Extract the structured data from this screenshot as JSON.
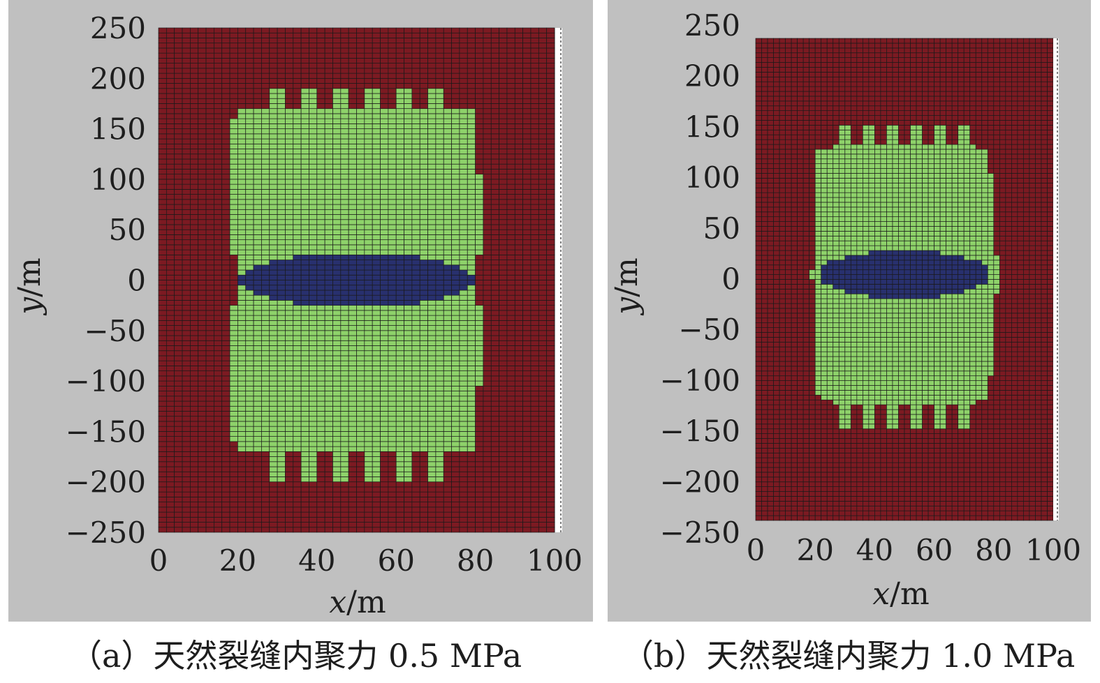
{
  "panels": [
    {
      "id": "a",
      "caption": "（a）天然裂缝内聚力 0.5 MPa",
      "xlabel_var": "x",
      "xlabel_unit": "/m",
      "ylabel_var": "y",
      "ylabel_unit": "/m",
      "xticks": [
        "0",
        "20",
        "40",
        "60",
        "80",
        "100"
      ],
      "yticks": [
        "250",
        "200",
        "150",
        "100",
        "50",
        "0",
        "−50",
        "−100",
        "−150",
        "−200",
        "−250"
      ]
    },
    {
      "id": "b",
      "caption": "（b）天然裂缝内聚力 1.0 MPa",
      "xlabel_var": "x",
      "xlabel_unit": "/m",
      "ylabel_var": "y",
      "ylabel_unit": "/m",
      "xticks": [
        "0",
        "20",
        "40",
        "60",
        "80",
        "100"
      ],
      "yticks": [
        "250",
        "200",
        "150",
        "100",
        "50",
        "0",
        "−50",
        "−100",
        "−150",
        "−200",
        "−250"
      ]
    }
  ],
  "colors": {
    "background": "#c0c0c0",
    "intact": "#7c1a22",
    "damaged": "#8ed26a",
    "core": "#28306e",
    "grid": "#1a1a1a"
  },
  "chart_data": [
    {
      "type": "heatmap",
      "xlim": [
        0,
        100
      ],
      "ylim": [
        -250,
        250
      ],
      "grid": true,
      "regions": [
        {
          "shape": "ellipse",
          "center": [
            50,
            0
          ],
          "semi_axes": [
            30,
            27
          ],
          "zone": "core"
        },
        {
          "shape": "zone-profile",
          "zone": "damaged",
          "y_profile": [
            [
              0,
              20,
              80
            ],
            [
              20,
              20,
              80
            ],
            [
              32,
              18,
              82
            ],
            [
              48,
              19,
              81
            ],
            [
              68,
              19,
              81
            ],
            [
              105,
              18,
              81
            ],
            [
              155,
              18,
              80
            ],
            [
              168,
              20,
              79
            ]
          ],
          "fingers": [
            [
              29,
              31
            ],
            [
              37,
              39
            ],
            [
              45,
              47
            ],
            [
              53,
              55
            ],
            [
              61,
              63
            ],
            [
              69,
              71
            ]
          ],
          "finger_top": 188,
          "finger_bottom": -198
        }
      ]
    },
    {
      "type": "heatmap",
      "xlim": [
        0,
        100
      ],
      "ylim": [
        -250,
        240
      ],
      "grid": true,
      "regions": [
        {
          "shape": "ellipse",
          "center": [
            50,
            0
          ],
          "semi_axes": [
            29,
            24
          ],
          "zone": "core"
        },
        {
          "shape": "zone-profile",
          "zone": "damaged",
          "y_profile": [
            [
              0,
              19,
              82
            ],
            [
              7,
              19,
              82
            ],
            [
              28,
              20,
              80
            ],
            [
              45,
              21,
              79
            ],
            [
              105,
              20,
              79
            ],
            [
              125,
              21,
              78
            ],
            [
              132,
              27,
              73
            ]
          ],
          "fingers": [
            [
              29,
              31
            ],
            [
              37,
              39
            ],
            [
              45,
              47
            ],
            [
              53,
              55
            ],
            [
              61,
              63
            ],
            [
              69,
              71
            ]
          ],
          "finger_top": 152,
          "finger_bottom": -158
        }
      ]
    }
  ]
}
